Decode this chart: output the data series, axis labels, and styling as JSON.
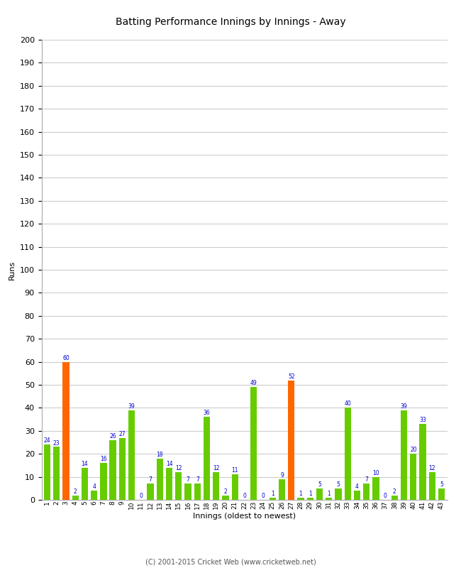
{
  "innings": [
    1,
    2,
    3,
    4,
    5,
    6,
    7,
    8,
    9,
    10,
    11,
    12,
    13,
    14,
    15,
    16,
    17,
    18,
    19,
    20,
    21,
    22,
    23,
    24,
    25,
    26,
    27,
    28,
    29,
    30,
    31,
    32,
    33,
    34,
    35,
    36,
    37,
    38,
    39,
    40,
    41,
    42,
    43
  ],
  "values": [
    24,
    23,
    60,
    2,
    14,
    4,
    16,
    26,
    27,
    39,
    0,
    7,
    18,
    14,
    12,
    7,
    7,
    36,
    12,
    2,
    11,
    0,
    49,
    0,
    1,
    9,
    52,
    1,
    1,
    5,
    1,
    5,
    40,
    4,
    7,
    10,
    0,
    2,
    39,
    20,
    33,
    12,
    5
  ],
  "colors": [
    "#66cc00",
    "#66cc00",
    "#ff6600",
    "#66cc00",
    "#66cc00",
    "#66cc00",
    "#66cc00",
    "#66cc00",
    "#66cc00",
    "#66cc00",
    "#66cc00",
    "#66cc00",
    "#66cc00",
    "#66cc00",
    "#66cc00",
    "#66cc00",
    "#66cc00",
    "#66cc00",
    "#66cc00",
    "#66cc00",
    "#66cc00",
    "#66cc00",
    "#66cc00",
    "#66cc00",
    "#66cc00",
    "#66cc00",
    "#ff6600",
    "#66cc00",
    "#66cc00",
    "#66cc00",
    "#66cc00",
    "#66cc00",
    "#66cc00",
    "#66cc00",
    "#66cc00",
    "#66cc00",
    "#66cc00",
    "#66cc00",
    "#66cc00",
    "#66cc00",
    "#66cc00",
    "#66cc00",
    "#66cc00"
  ],
  "title": "Batting Performance Innings by Innings - Away",
  "xlabel": "Innings (oldest to newest)",
  "ylabel": "Runs",
  "ylim": [
    0,
    200
  ],
  "yticks": [
    0,
    10,
    20,
    30,
    40,
    50,
    60,
    70,
    80,
    90,
    100,
    110,
    120,
    130,
    140,
    150,
    160,
    170,
    180,
    190,
    200
  ],
  "label_color": "#0000cc",
  "background_color": "#ffffff",
  "grid_color": "#cccccc",
  "footer": "(C) 2001-2015 Cricket Web (www.cricketweb.net)"
}
